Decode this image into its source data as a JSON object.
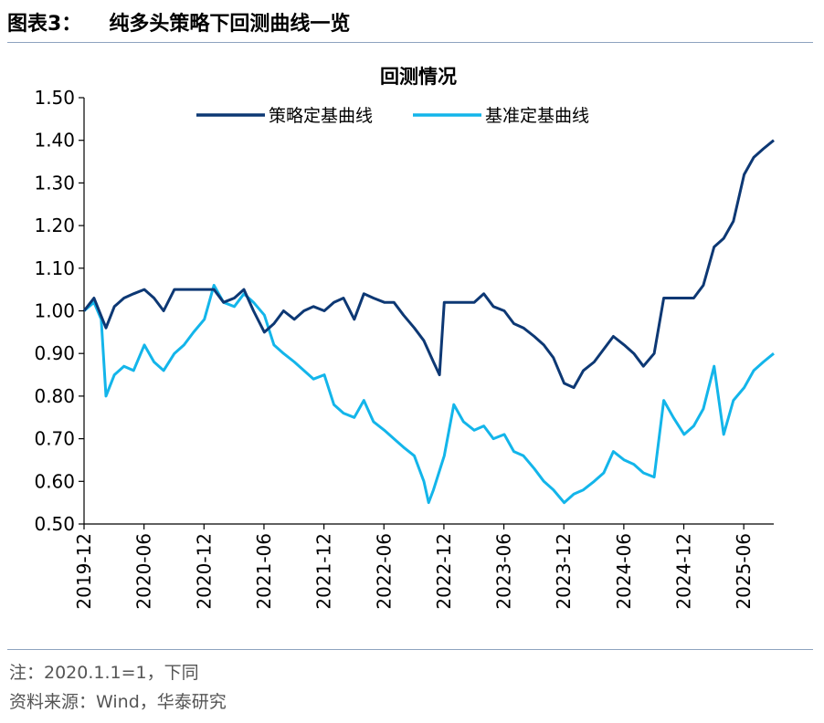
{
  "figure": {
    "label": "图表3：",
    "caption": "纯多头策略下回测曲线一览",
    "note": "注：2020.1.1=1，下同",
    "source": "资料来源：Wind，华泰研究"
  },
  "colors": {
    "strategy": "#0d3874",
    "benchmark": "#13b5ea",
    "rule": "#8ea3bf"
  },
  "chart_data": {
    "type": "line",
    "title": "回测情况",
    "xlabel": "",
    "ylabel": "",
    "ylim": [
      0.5,
      1.5
    ],
    "yticks": [
      0.5,
      0.6,
      0.7,
      0.8,
      0.9,
      1.0,
      1.1,
      1.2,
      1.3,
      1.4,
      1.5
    ],
    "ytick_labels": [
      "0.50",
      "0.60",
      "0.70",
      "0.80",
      "0.90",
      "1.00",
      "1.10",
      "1.20",
      "1.30",
      "1.40",
      "1.50"
    ],
    "xlim": [
      2019.917,
      2025.667
    ],
    "x_tick_labels": [
      "2019-12",
      "2020-06",
      "2020-12",
      "2021-06",
      "2021-12",
      "2022-06",
      "2022-12",
      "2023-06",
      "2023-12",
      "2024-06",
      "2024-12",
      "2025-06"
    ],
    "x_tick_values": [
      2019.917,
      2020.417,
      2020.917,
      2021.417,
      2021.917,
      2022.417,
      2022.917,
      2023.417,
      2023.917,
      2024.417,
      2024.917,
      2025.417
    ],
    "legend_position": "top",
    "series": [
      {
        "name": "策略定基曲线",
        "color_key": "strategy",
        "x": [
          2019.917,
          2020.0,
          2020.1,
          2020.17,
          2020.25,
          2020.33,
          2020.42,
          2020.5,
          2020.58,
          2020.67,
          2020.75,
          2020.83,
          2020.92,
          2021.0,
          2021.08,
          2021.17,
          2021.25,
          2021.33,
          2021.42,
          2021.5,
          2021.58,
          2021.67,
          2021.75,
          2021.83,
          2021.92,
          2022.0,
          2022.08,
          2022.17,
          2022.25,
          2022.33,
          2022.42,
          2022.5,
          2022.58,
          2022.67,
          2022.75,
          2022.83,
          2022.88,
          2022.92,
          2023.0,
          2023.08,
          2023.17,
          2023.25,
          2023.33,
          2023.42,
          2023.5,
          2023.58,
          2023.67,
          2023.75,
          2023.83,
          2023.92,
          2024.0,
          2024.08,
          2024.17,
          2024.25,
          2024.33,
          2024.42,
          2024.5,
          2024.58,
          2024.67,
          2024.75,
          2024.83,
          2024.92,
          2025.0,
          2025.08,
          2025.17,
          2025.25,
          2025.33,
          2025.42,
          2025.5,
          2025.58,
          2025.667
        ],
        "values": [
          1.0,
          1.03,
          0.96,
          1.01,
          1.03,
          1.04,
          1.05,
          1.03,
          1.0,
          1.05,
          1.05,
          1.05,
          1.05,
          1.05,
          1.02,
          1.03,
          1.05,
          1.0,
          0.95,
          0.97,
          1.0,
          0.98,
          1.0,
          1.01,
          1.0,
          1.02,
          1.03,
          0.98,
          1.04,
          1.03,
          1.02,
          1.02,
          0.99,
          0.96,
          0.93,
          0.88,
          0.85,
          1.02,
          1.02,
          1.02,
          1.02,
          1.04,
          1.01,
          1.0,
          0.97,
          0.96,
          0.94,
          0.92,
          0.89,
          0.83,
          0.82,
          0.86,
          0.88,
          0.91,
          0.94,
          0.92,
          0.9,
          0.87,
          0.9,
          1.03,
          1.03,
          1.03,
          1.03,
          1.06,
          1.15,
          1.17,
          1.21,
          1.32,
          1.36,
          1.38,
          1.4
        ]
      },
      {
        "name": "基准定基曲线",
        "color_key": "benchmark",
        "x": [
          2019.917,
          2020.0,
          2020.06,
          2020.1,
          2020.17,
          2020.25,
          2020.33,
          2020.42,
          2020.5,
          2020.58,
          2020.67,
          2020.75,
          2020.83,
          2020.92,
          2021.0,
          2021.08,
          2021.17,
          2021.25,
          2021.33,
          2021.42,
          2021.5,
          2021.58,
          2021.67,
          2021.75,
          2021.83,
          2021.92,
          2022.0,
          2022.08,
          2022.17,
          2022.25,
          2022.33,
          2022.42,
          2022.5,
          2022.58,
          2022.67,
          2022.75,
          2022.79,
          2022.83,
          2022.92,
          2023.0,
          2023.08,
          2023.17,
          2023.25,
          2023.33,
          2023.42,
          2023.5,
          2023.58,
          2023.67,
          2023.75,
          2023.83,
          2023.92,
          2024.0,
          2024.08,
          2024.17,
          2024.25,
          2024.33,
          2024.42,
          2024.5,
          2024.58,
          2024.67,
          2024.75,
          2024.83,
          2024.92,
          2025.0,
          2025.08,
          2025.17,
          2025.25,
          2025.33,
          2025.42,
          2025.5,
          2025.58,
          2025.667
        ],
        "values": [
          1.0,
          1.02,
          0.98,
          0.8,
          0.85,
          0.87,
          0.86,
          0.92,
          0.88,
          0.86,
          0.9,
          0.92,
          0.95,
          0.98,
          1.06,
          1.02,
          1.01,
          1.04,
          1.02,
          0.99,
          0.92,
          0.9,
          0.88,
          0.86,
          0.84,
          0.85,
          0.78,
          0.76,
          0.75,
          0.79,
          0.74,
          0.72,
          0.7,
          0.68,
          0.66,
          0.6,
          0.55,
          0.58,
          0.66,
          0.78,
          0.74,
          0.72,
          0.73,
          0.7,
          0.71,
          0.67,
          0.66,
          0.63,
          0.6,
          0.58,
          0.55,
          0.57,
          0.58,
          0.6,
          0.62,
          0.67,
          0.65,
          0.64,
          0.62,
          0.61,
          0.79,
          0.75,
          0.71,
          0.73,
          0.77,
          0.87,
          0.71,
          0.79,
          0.82,
          0.86,
          0.88,
          0.9
        ]
      }
    ]
  }
}
